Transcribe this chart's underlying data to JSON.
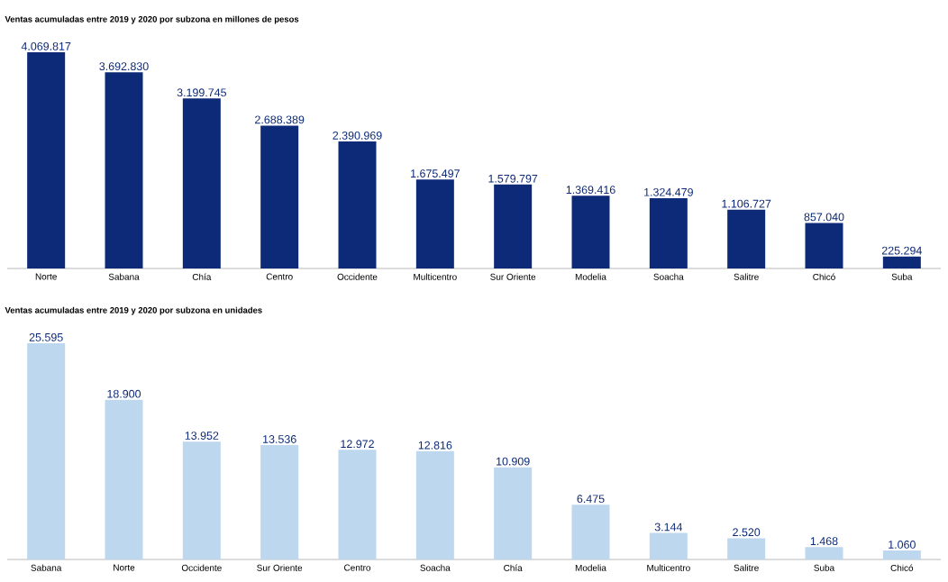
{
  "chart_data": [
    {
      "type": "bar",
      "title": "Ventas acumuladas entre 2019 y 2020 por subzona en millones de pesos",
      "categories": [
        "Norte",
        "Sabana",
        "Chía",
        "Centro",
        "Occidente",
        "Multicentro",
        "Sur Oriente",
        "Modelia",
        "Soacha",
        "Salitre",
        "Chicó",
        "Suba"
      ],
      "values": [
        4069817,
        3692830,
        3199745,
        2688389,
        2390969,
        1675497,
        1579797,
        1369416,
        1324479,
        1106727,
        857040,
        225294
      ],
      "value_labels": [
        "4.069.817",
        "3.692.830",
        "3.199.745",
        "2.688.389",
        "2.390.969",
        "1.675.497",
        "1.579.797",
        "1.369.416",
        "1.324.479",
        "1.106.727",
        "857.040",
        "225.294"
      ],
      "color": "#0d2a78"
    },
    {
      "type": "bar",
      "title": "Ventas acumuladas entre 2019 y 2020 por subzona en unidades",
      "categories": [
        "Sabana",
        "Norte",
        "Occidente",
        "Sur Oriente",
        "Centro",
        "Soacha",
        "Chía",
        "Modelia",
        "Multicentro",
        "Salitre",
        "Suba",
        "Chicó"
      ],
      "values": [
        25595,
        18900,
        13952,
        13536,
        12972,
        12816,
        10909,
        6475,
        3144,
        2520,
        1468,
        1060
      ],
      "value_labels": [
        "25.595",
        "18.900",
        "13.952",
        "13.536",
        "12.972",
        "12.816",
        "10.909",
        "6.475",
        "3.144",
        "2.520",
        "1.468",
        "1.060"
      ],
      "color": "#bdd7ee"
    }
  ]
}
